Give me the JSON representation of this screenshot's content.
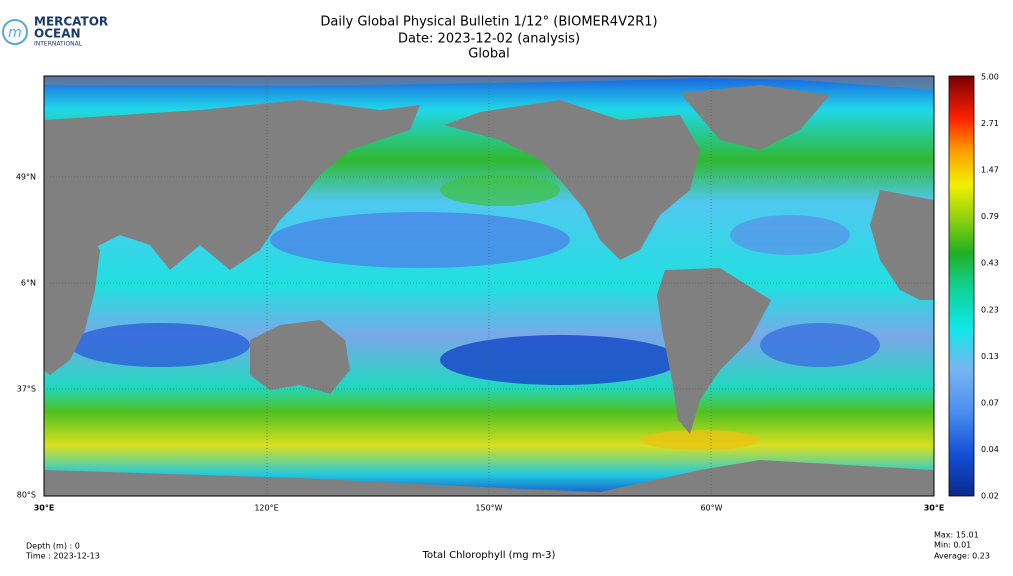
{
  "logo": {
    "line1": "MERCATOR",
    "line2": "OCEAN",
    "line3": "INTERNATIONAL"
  },
  "header": {
    "title": "Daily Global Physical Bulletin 1/12° (BIOMER4V2R1)",
    "date": "Date: 2023-12-02 (analysis)",
    "region": "Global"
  },
  "map": {
    "lat_labels": [
      "49°N",
      "6°N",
      "37°S",
      "80°S"
    ],
    "lon_labels": [
      "30°E",
      "120°E",
      "150°W",
      "60°W",
      "30°E"
    ]
  },
  "colorbar": {
    "labels": [
      "5.00",
      "2.71",
      "1.47",
      "0.79",
      "0.43",
      "0.23",
      "0.13",
      "0.07",
      "0.04",
      "0.02"
    ]
  },
  "footer": {
    "depth": "Depth (m) : 0",
    "time": "Time : 2023-12-13",
    "variable": "Total Chlorophyll (mg m-3)",
    "max": "Max: 15.01",
    "min": "Min:  0.01",
    "average": "Average:  0.23"
  }
}
